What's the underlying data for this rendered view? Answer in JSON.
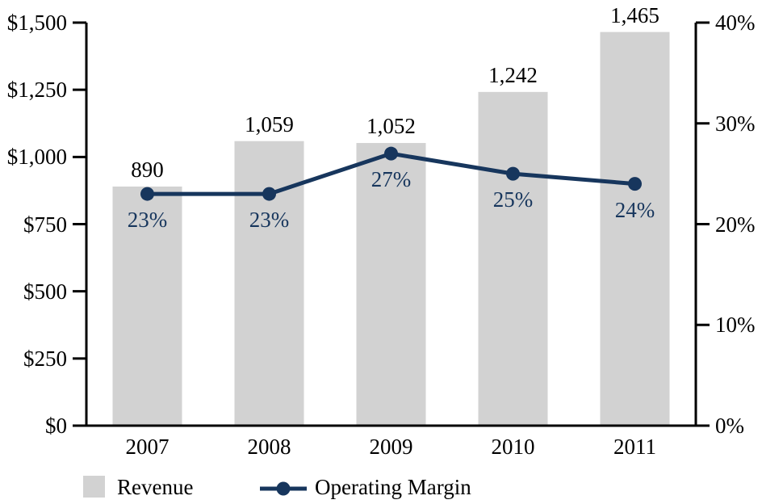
{
  "chart_data": {
    "type": "bar",
    "subtype": "bar-line-combo",
    "categories": [
      "2007",
      "2008",
      "2009",
      "2010",
      "2011"
    ],
    "series": [
      {
        "name": "Revenue",
        "type": "bar",
        "axis": "left",
        "values": [
          890,
          1059,
          1052,
          1242,
          1465
        ],
        "value_labels": [
          "890",
          "1,059",
          "1,052",
          "1,242",
          "1,465"
        ],
        "color": "#d2d2d2"
      },
      {
        "name": "Operating Margin",
        "type": "line",
        "axis": "right",
        "values": [
          23,
          23,
          27,
          25,
          24
        ],
        "value_labels": [
          "23%",
          "23%",
          "27%",
          "25%",
          "24%"
        ],
        "color": "#17365d"
      }
    ],
    "left_axis": {
      "range": [
        0,
        1500
      ],
      "ticks": [
        1500,
        1250,
        1000,
        750,
        500,
        250,
        0
      ],
      "tick_labels": [
        "$1,500",
        "$1,250",
        "$1,000",
        "$750",
        "$500",
        "$250",
        "$0"
      ]
    },
    "right_axis": {
      "range": [
        0,
        40
      ],
      "ticks": [
        40,
        30,
        20,
        10,
        0
      ],
      "tick_labels": [
        "40%",
        "30%",
        "20%",
        "10%",
        "0%"
      ]
    },
    "legend": [
      {
        "label": "Revenue"
      },
      {
        "label": "Operating Margin"
      }
    ],
    "legend_position": "bottom",
    "grid": false,
    "background": "#ffffff",
    "text_color": "#000000",
    "axis_color": "#000000"
  }
}
